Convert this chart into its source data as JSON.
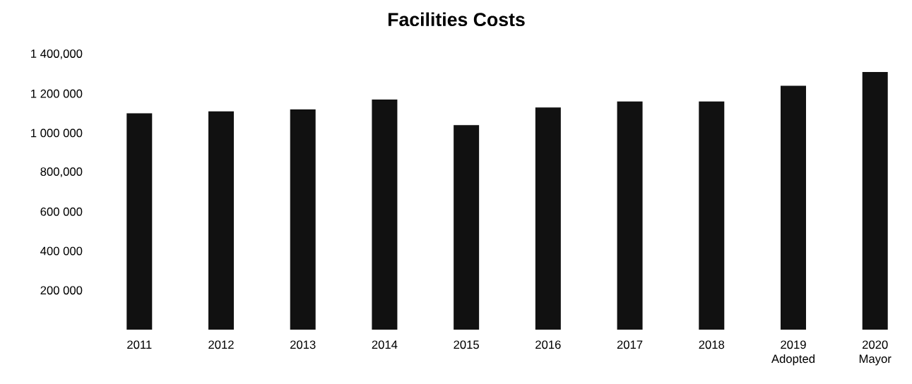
{
  "chart_data": {
    "type": "bar",
    "title": "Facilities Costs",
    "categories": [
      "2011",
      "2012",
      "2013",
      "2014",
      "2015",
      "2016",
      "2017",
      "2018",
      "2019 Adopted",
      "2020 Mayor"
    ],
    "values": [
      1100000,
      1110000,
      1120000,
      1170000,
      1040000,
      1130000,
      1160000,
      1160000,
      1240000,
      1310000
    ],
    "color": "#111111",
    "ylim": [
      0,
      1400000
    ],
    "yticks": [
      {
        "value": 200000,
        "label": "200 000"
      },
      {
        "value": 400000,
        "label": "400 000"
      },
      {
        "value": 600000,
        "label": "600 000"
      },
      {
        "value": 800000,
        "label": "800,000"
      },
      {
        "value": 1000000,
        "label": "1 000 000"
      },
      {
        "value": 1200000,
        "label": "1 200 000"
      },
      {
        "value": 1400000,
        "label": "1 400,000"
      }
    ]
  }
}
